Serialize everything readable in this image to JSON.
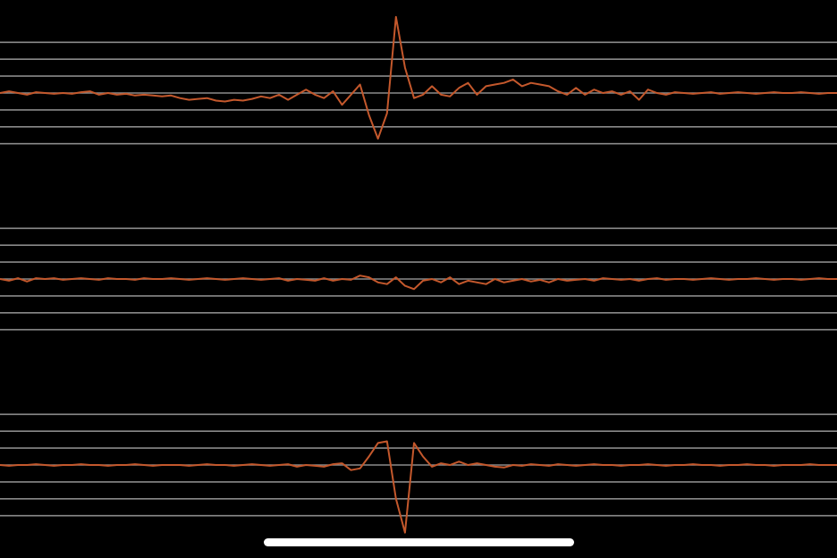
{
  "chart_data": [
    {
      "type": "line",
      "color": "#c4582c",
      "ylim": [
        -5.5,
        5.5
      ],
      "yticks": [
        -3,
        -2,
        -1,
        0,
        1,
        2,
        3
      ],
      "grid": true,
      "values": [
        0,
        0.1,
        0,
        -0.1,
        0.05,
        0,
        -0.05,
        0,
        -0.05,
        0.05,
        0.1,
        -0.1,
        0,
        -0.1,
        -0.05,
        -0.15,
        -0.1,
        -0.15,
        -0.2,
        -0.15,
        -0.3,
        -0.4,
        -0.35,
        -0.3,
        -0.45,
        -0.5,
        -0.4,
        -0.45,
        -0.35,
        -0.2,
        -0.3,
        -0.1,
        -0.4,
        -0.1,
        0.2,
        -0.1,
        -0.3,
        0.1,
        -0.7,
        -0.1,
        0.5,
        -1.3,
        -2.7,
        -1.2,
        4.5,
        1.5,
        -0.3,
        -0.1,
        0.4,
        -0.1,
        -0.2,
        0.3,
        0.6,
        -0.1,
        0.4,
        0.5,
        0.6,
        0.8,
        0.4,
        0.6,
        0.5,
        0.4,
        0.1,
        -0.1,
        0.3,
        -0.1,
        0.2,
        0,
        0.1,
        -0.1,
        0.1,
        -0.4,
        0.2,
        0,
        -0.1,
        0.05,
        0,
        -0.05,
        0,
        0.05,
        -0.05,
        0,
        0.05,
        0,
        -0.05,
        0,
        0.05,
        0,
        0,
        0.05,
        0,
        -0.05,
        0,
        0
      ]
    },
    {
      "type": "line",
      "color": "#c4582c",
      "ylim": [
        -5.5,
        5.5
      ],
      "yticks": [
        -3,
        -2,
        -1,
        0,
        1,
        2,
        3
      ],
      "grid": true,
      "values": [
        0,
        -0.1,
        0.05,
        -0.15,
        0.05,
        0,
        0.05,
        -0.05,
        0,
        0.05,
        0,
        -0.05,
        0.05,
        0,
        0,
        -0.05,
        0.05,
        0,
        0,
        0.05,
        0,
        -0.05,
        0,
        0.05,
        0,
        -0.05,
        0,
        0.05,
        0,
        -0.05,
        0,
        0.05,
        -0.1,
        0,
        -0.05,
        -0.1,
        0.05,
        -0.1,
        0,
        -0.05,
        0.2,
        0.1,
        -0.2,
        -0.3,
        0.1,
        -0.4,
        -0.6,
        -0.1,
        0,
        -0.2,
        0.1,
        -0.3,
        -0.1,
        -0.2,
        -0.3,
        0,
        -0.2,
        -0.1,
        0,
        -0.15,
        -0.05,
        -0.2,
        0,
        -0.1,
        -0.05,
        0,
        -0.1,
        0.05,
        0,
        -0.05,
        0,
        -0.1,
        0,
        0.05,
        -0.05,
        0,
        0,
        -0.05,
        0,
        0.05,
        0,
        -0.05,
        0,
        0,
        0.05,
        0,
        -0.05,
        0,
        0,
        -0.05,
        0,
        0.05,
        0,
        0
      ]
    },
    {
      "type": "line",
      "color": "#c4582c",
      "ylim": [
        -5.5,
        5.5
      ],
      "yticks": [
        -3,
        -2,
        -1,
        0,
        1,
        2,
        3
      ],
      "grid": true,
      "values": [
        0,
        -0.05,
        0,
        0,
        0.05,
        0,
        -0.05,
        0,
        0,
        0.05,
        0,
        0,
        -0.05,
        0,
        0,
        0.05,
        0,
        -0.05,
        0,
        0,
        0,
        -0.05,
        0,
        0.05,
        0,
        0,
        -0.05,
        0,
        0.05,
        0,
        -0.05,
        0,
        0.05,
        -0.1,
        0,
        -0.05,
        -0.1,
        0.05,
        0.1,
        -0.3,
        -0.2,
        0.5,
        1.3,
        1.4,
        -2,
        -4,
        1.3,
        0.5,
        -0.1,
        0.1,
        0,
        0.2,
        0,
        0.1,
        0,
        -0.1,
        -0.15,
        0,
        -0.05,
        0.05,
        0,
        -0.05,
        0.05,
        0,
        -0.05,
        0,
        0.05,
        0,
        0,
        -0.05,
        0,
        0,
        0.05,
        0,
        -0.05,
        0,
        0,
        0.05,
        0,
        0,
        -0.05,
        0,
        0,
        0.05,
        0,
        0,
        -0.05,
        0,
        0,
        0,
        0.05,
        0,
        0,
        0
      ]
    }
  ]
}
